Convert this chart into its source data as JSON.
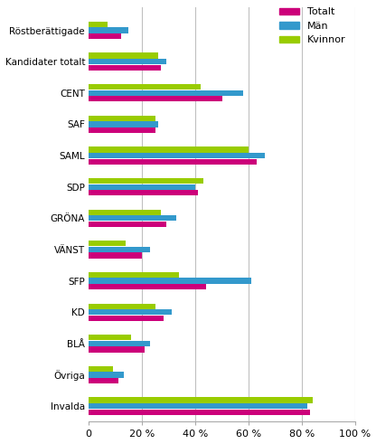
{
  "categories": [
    "Röstberättigade",
    "Kandidater totalt",
    "CENT",
    "SAF",
    "SAML",
    "SDP",
    "GRÖNA",
    "VÄNST",
    "SFP",
    "KD",
    "BLÅ",
    "Övriga",
    "Invalda"
  ],
  "totalt": [
    12,
    27,
    50,
    25,
    63,
    41,
    29,
    20,
    44,
    28,
    21,
    11,
    83
  ],
  "man": [
    15,
    29,
    58,
    26,
    66,
    40,
    33,
    23,
    61,
    31,
    23,
    13,
    82
  ],
  "kvinnor": [
    7,
    26,
    42,
    25,
    60,
    43,
    27,
    14,
    34,
    25,
    16,
    9,
    84
  ],
  "color_totalt": "#CC007A",
  "color_man": "#3399CC",
  "color_kvinnor": "#99CC00",
  "xlim": [
    0,
    100
  ],
  "xticks": [
    0,
    20,
    40,
    60,
    80,
    100
  ],
  "xticklabels": [
    "0",
    "20 %",
    "40 %",
    "60 %",
    "80 %",
    "100 %"
  ],
  "legend_labels": [
    "Totalt",
    "Män",
    "Kvinnor"
  ],
  "background_color": "#ffffff",
  "grid_color": "#c0c0c0"
}
